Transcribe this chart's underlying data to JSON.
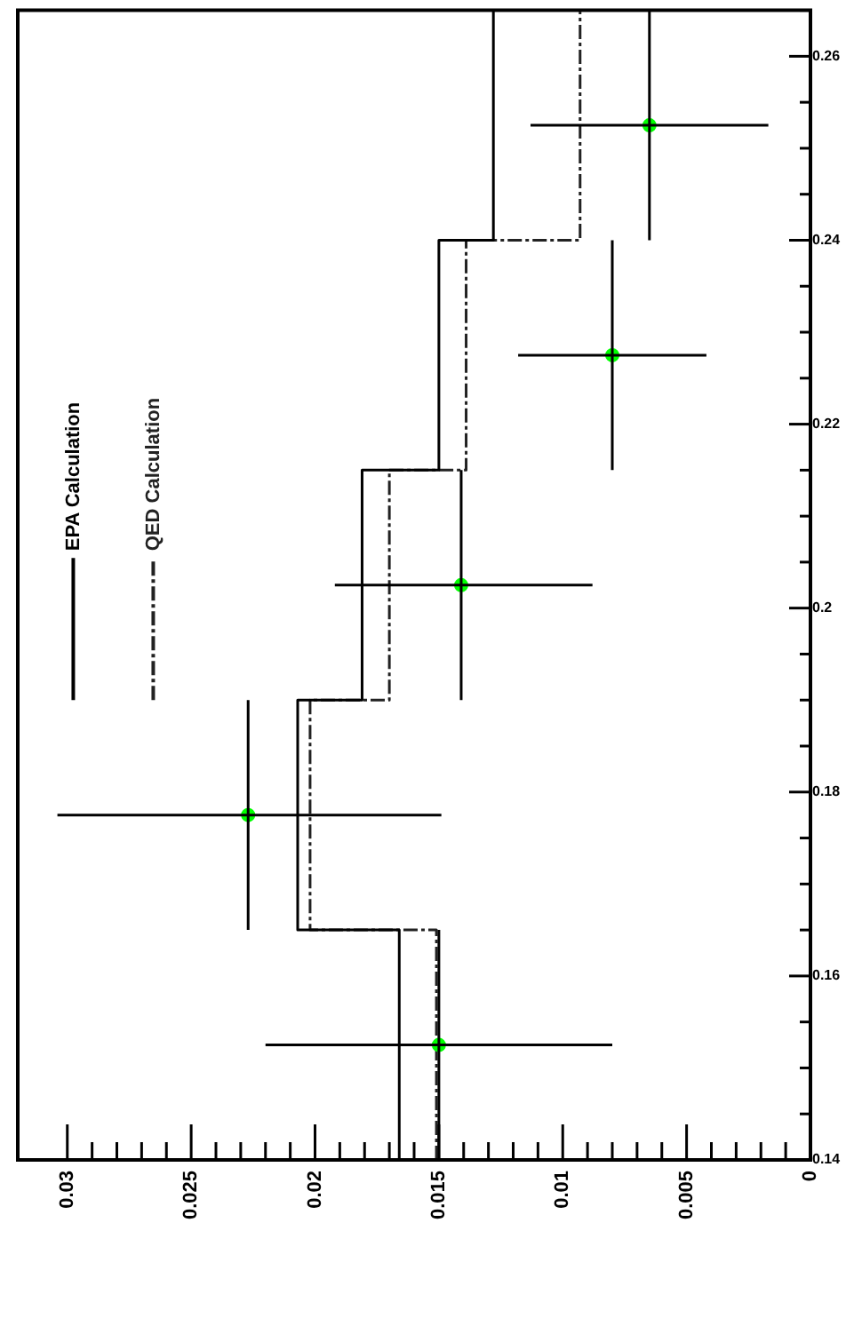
{
  "chart_data": {
    "type": "histogram",
    "orientation": "horizontal",
    "bins": [
      0.14,
      0.165,
      0.19,
      0.215,
      0.24,
      0.265
    ],
    "series": [
      {
        "name": "EPA Calculation",
        "color": "#000000",
        "line_style": "solid",
        "values": [
          0.0166,
          0.0207,
          0.0181,
          0.015,
          0.0128
        ]
      },
      {
        "name": "QED Calculation",
        "color": "#222222",
        "line_style": "dashed",
        "values": [
          0.0151,
          0.0202,
          0.017,
          0.0139,
          0.0093
        ]
      },
      {
        "type": "scatter",
        "color": "#00ff00",
        "marker": "circle",
        "x": [
          0.1525,
          0.1775,
          0.2025,
          0.2275,
          0.2525
        ],
        "values": [
          0.015,
          0.0227,
          0.0141,
          0.008,
          0.0065
        ],
        "errors": [
          [
            0.008,
            0.022
          ],
          [
            0.0149,
            0.0304
          ],
          [
            0.0088,
            0.0192
          ],
          [
            0.0042,
            0.0118
          ],
          [
            0.0017,
            0.0113
          ]
        ],
        "xerrors": [
          0.0125,
          0.0125,
          0.0125,
          0.0125,
          0.0125
        ]
      }
    ],
    "xlim": [
      0.032,
      0
    ],
    "xticks": [
      0.03,
      0.025,
      0.02,
      0.015,
      0.01,
      0.005,
      0
    ],
    "ylim": [
      0.14,
      0.265
    ],
    "yticks": [
      0.14,
      0.16,
      0.18,
      0.2,
      0.22,
      0.24,
      0.26
    ],
    "grid": false,
    "legend": "top"
  }
}
